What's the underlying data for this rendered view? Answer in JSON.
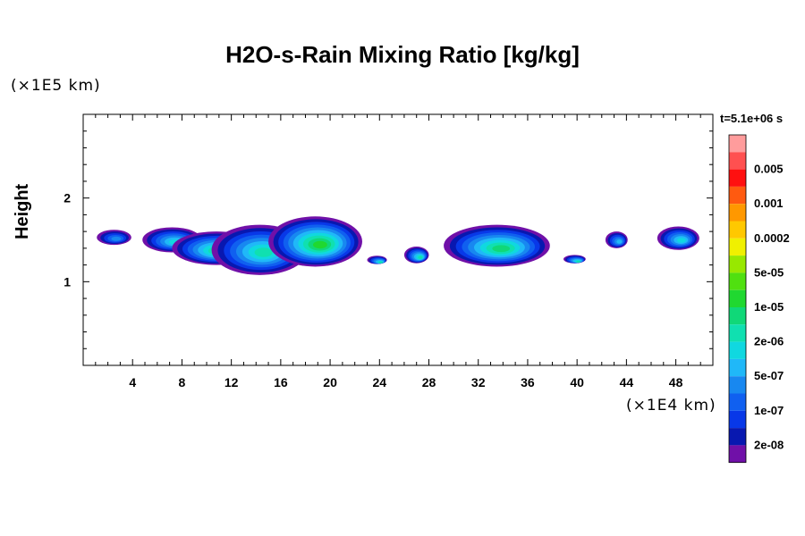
{
  "chart_data": {
    "type": "heatmap",
    "title": "H2O-s-Rain Mixing Ratio [kg/kg]",
    "ylabel": "Height",
    "xlabel": "",
    "x_unit": "(×1E4 km)",
    "y_unit": "(×1E5 km)",
    "time_label": "t=5.1e+06 s",
    "xlim": [
      0,
      51
    ],
    "ylim": [
      0,
      3
    ],
    "x_ticks": [
      "4",
      "8",
      "12",
      "16",
      "20",
      "24",
      "28",
      "32",
      "36",
      "40",
      "44",
      "48"
    ],
    "y_ticks": [
      "1",
      "2"
    ],
    "colorbar": {
      "levels": [
        {
          "label": "",
          "color": "#ff9c9c"
        },
        {
          "label": "0.005",
          "color": "#ff5050"
        },
        {
          "label": "",
          "color": "#ff1010"
        },
        {
          "label": "0.001",
          "color": "#ff5a10"
        },
        {
          "label": "",
          "color": "#ff9800"
        },
        {
          "label": "0.0002",
          "color": "#ffc800"
        },
        {
          "label": "",
          "color": "#f0f000"
        },
        {
          "label": "5e-05",
          "color": "#98e800"
        },
        {
          "label": "",
          "color": "#50e010"
        },
        {
          "label": "1e-05",
          "color": "#20d830"
        },
        {
          "label": "",
          "color": "#10d878"
        },
        {
          "label": "2e-06",
          "color": "#10e0b0"
        },
        {
          "label": "",
          "color": "#10d8e0"
        },
        {
          "label": "5e-07",
          "color": "#20b8f8"
        },
        {
          "label": "",
          "color": "#1888f0"
        },
        {
          "label": "1e-07",
          "color": "#1060f0"
        },
        {
          "label": "",
          "color": "#0838e8"
        },
        {
          "label": "2e-08",
          "color": "#0818b0"
        },
        {
          "label": "",
          "color": "#7010a8"
        }
      ]
    },
    "cells": [
      {
        "x": 2.5,
        "y": 1.53,
        "rx": 1.4,
        "ry": 0.09,
        "level": 2
      },
      {
        "x": 7.2,
        "y": 1.5,
        "rx": 2.4,
        "ry": 0.15,
        "level": 4
      },
      {
        "x": 10.8,
        "y": 1.4,
        "rx": 3.6,
        "ry": 0.2,
        "level": 6
      },
      {
        "x": 14.3,
        "y": 1.38,
        "rx": 3.9,
        "ry": 0.3,
        "level": 5
      },
      {
        "x": 18.8,
        "y": 1.48,
        "rx": 3.8,
        "ry": 0.3,
        "level": 7
      },
      {
        "x": 23.8,
        "y": 1.26,
        "rx": 0.8,
        "ry": 0.05,
        "level": 5
      },
      {
        "x": 27.0,
        "y": 1.32,
        "rx": 1.0,
        "ry": 0.1,
        "level": 5
      },
      {
        "x": 33.5,
        "y": 1.43,
        "rx": 4.3,
        "ry": 0.25,
        "level": 6
      },
      {
        "x": 39.8,
        "y": 1.27,
        "rx": 0.9,
        "ry": 0.05,
        "level": 5
      },
      {
        "x": 43.2,
        "y": 1.5,
        "rx": 0.9,
        "ry": 0.1,
        "level": 3
      },
      {
        "x": 48.2,
        "y": 1.52,
        "rx": 1.7,
        "ry": 0.14,
        "level": 4
      }
    ]
  }
}
